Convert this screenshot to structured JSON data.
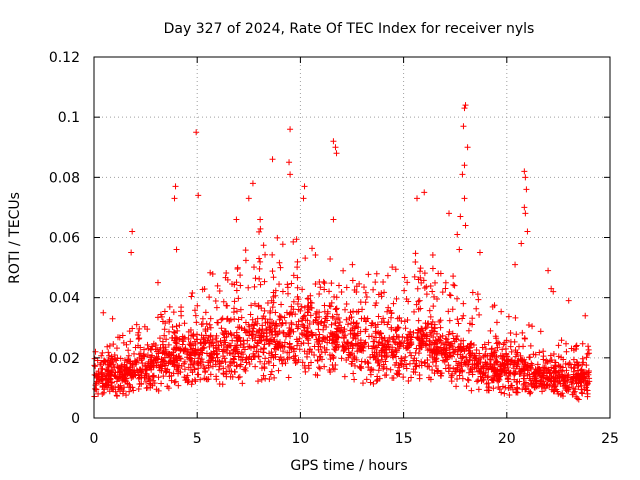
{
  "chart_data": {
    "type": "scatter",
    "title": "Day 327 of 2024, Rate Of TEC Index for receiver nyls",
    "xlabel": "GPS time / hours",
    "ylabel": "ROTI / TECUs",
    "xlim": [
      0,
      25
    ],
    "ylim": [
      0,
      0.12
    ],
    "x_ticks": [
      0,
      5,
      10,
      15,
      20,
      25
    ],
    "x_tick_labels": [
      "0",
      "5",
      "10",
      "15",
      "20",
      "25"
    ],
    "y_ticks": [
      0,
      0.02,
      0.04,
      0.06,
      0.08,
      0.1,
      0.12
    ],
    "y_tick_labels": [
      "0",
      "0.02",
      "0.04",
      "0.06",
      "0.08",
      "0.1",
      "0.12"
    ],
    "grid": true,
    "marker": "plus",
    "color": "#ff0000",
    "series": [
      {
        "name": "ROTI",
        "baseline": [
          [
            0,
            0.013
          ],
          [
            2,
            0.015
          ],
          [
            4,
            0.019
          ],
          [
            6,
            0.022
          ],
          [
            8,
            0.025
          ],
          [
            10,
            0.027
          ],
          [
            12,
            0.025
          ],
          [
            14,
            0.022
          ],
          [
            16,
            0.024
          ],
          [
            18,
            0.018
          ],
          [
            20,
            0.015
          ],
          [
            22,
            0.013
          ],
          [
            24,
            0.013
          ]
        ],
        "upper_envelope": [
          [
            0,
            0.022
          ],
          [
            1,
            0.026
          ],
          [
            2,
            0.032
          ],
          [
            3,
            0.035
          ],
          [
            4,
            0.038
          ],
          [
            5,
            0.045
          ],
          [
            6,
            0.052
          ],
          [
            7,
            0.058
          ],
          [
            8,
            0.064
          ],
          [
            9,
            0.062
          ],
          [
            10,
            0.06
          ],
          [
            11,
            0.058
          ],
          [
            12,
            0.055
          ],
          [
            13,
            0.052
          ],
          [
            14,
            0.05
          ],
          [
            15,
            0.055
          ],
          [
            16,
            0.058
          ],
          [
            17,
            0.05
          ],
          [
            18,
            0.045
          ],
          [
            19,
            0.04
          ],
          [
            20,
            0.035
          ],
          [
            21,
            0.032
          ],
          [
            22,
            0.028
          ],
          [
            23,
            0.026
          ],
          [
            24,
            0.025
          ]
        ],
        "peaks": [
          [
            0.45,
            0.035
          ],
          [
            0.9,
            0.033
          ],
          [
            1.85,
            0.062
          ],
          [
            1.8,
            0.055
          ],
          [
            3.1,
            0.045
          ],
          [
            3.95,
            0.077
          ],
          [
            3.9,
            0.073
          ],
          [
            4.0,
            0.056
          ],
          [
            4.95,
            0.095
          ],
          [
            5.05,
            0.074
          ],
          [
            6.9,
            0.066
          ],
          [
            7.5,
            0.073
          ],
          [
            7.7,
            0.078
          ],
          [
            8.05,
            0.066
          ],
          [
            8.65,
            0.086
          ],
          [
            9.5,
            0.096
          ],
          [
            9.45,
            0.085
          ],
          [
            9.5,
            0.081
          ],
          [
            10.2,
            0.077
          ],
          [
            10.15,
            0.073
          ],
          [
            11.6,
            0.092
          ],
          [
            11.7,
            0.09
          ],
          [
            11.75,
            0.088
          ],
          [
            11.6,
            0.066
          ],
          [
            15.65,
            0.073
          ],
          [
            16.0,
            0.075
          ],
          [
            17.2,
            0.068
          ],
          [
            17.75,
            0.067
          ],
          [
            17.6,
            0.061
          ],
          [
            17.7,
            0.056
          ],
          [
            17.95,
            0.073
          ],
          [
            17.85,
            0.081
          ],
          [
            17.95,
            0.084
          ],
          [
            17.9,
            0.097
          ],
          [
            17.95,
            0.103
          ],
          [
            18.0,
            0.104
          ],
          [
            18.1,
            0.09
          ],
          [
            18.0,
            0.064
          ],
          [
            18.7,
            0.055
          ],
          [
            20.4,
            0.051
          ],
          [
            20.7,
            0.058
          ],
          [
            20.85,
            0.082
          ],
          [
            20.9,
            0.08
          ],
          [
            20.95,
            0.076
          ],
          [
            20.85,
            0.07
          ],
          [
            20.9,
            0.068
          ],
          [
            21.0,
            0.062
          ],
          [
            22.0,
            0.049
          ],
          [
            22.15,
            0.043
          ],
          [
            22.25,
            0.042
          ],
          [
            23.0,
            0.039
          ],
          [
            23.8,
            0.034
          ]
        ]
      }
    ]
  }
}
